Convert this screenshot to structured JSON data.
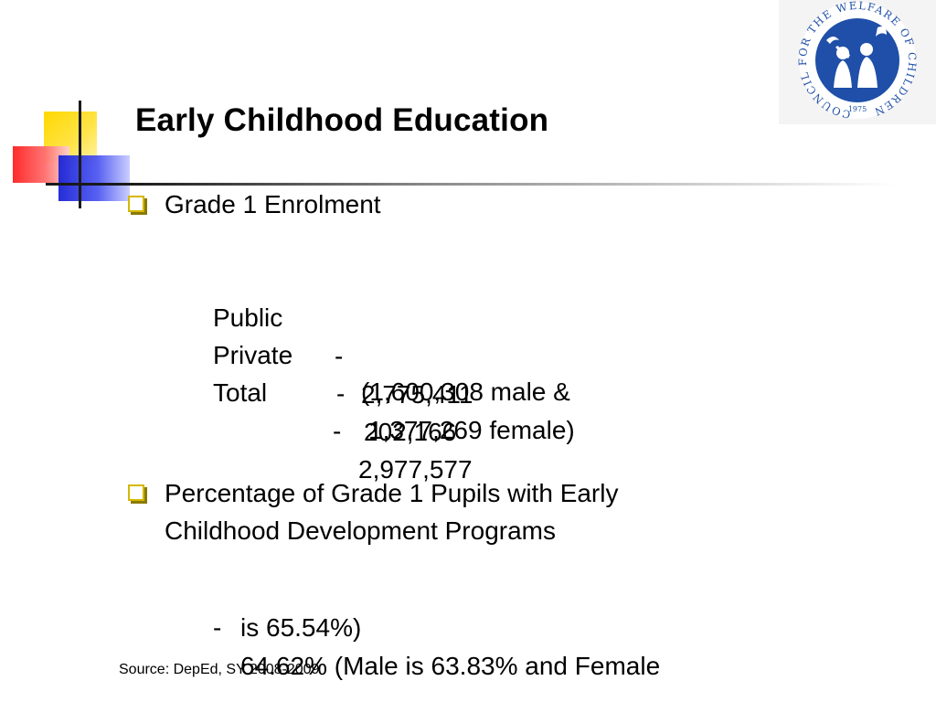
{
  "slide": {
    "title": "Early Childhood Education",
    "logo": {
      "ring_text": "COUNCIL FOR THE WELFARE OF CHILDREN",
      "year": "1975",
      "colors": {
        "blue": "#1f4fa8",
        "white": "#ffffff"
      }
    },
    "bullet1": {
      "label": "Grade 1 Enrolment",
      "rows": [
        {
          "name": "Public",
          "sep": "-",
          "value": "2,775,411"
        },
        {
          "name": "Private",
          "sep": "-",
          "value": "202,166"
        },
        {
          "name": "Total",
          "sep": "-",
          "value": "2,977,577"
        }
      ],
      "breakdown": [
        "(1,600,308 male &",
        "1,377,269 female)"
      ]
    },
    "bullet2": {
      "label": "Percentage of Grade 1 Pupils with Early Childhood Development Programs",
      "detail_sep": "-",
      "detail_line1": "64.62% (Male is 63.83% and Female",
      "detail_line2": "is 65.54%)"
    },
    "source": "Source: DepEd, SY 2008-2009",
    "colors": {
      "deco_yellow": "#ffd800",
      "deco_red": "#ff2020",
      "deco_blue": "#1a23d6",
      "bullet_box": "#d4b800"
    }
  }
}
